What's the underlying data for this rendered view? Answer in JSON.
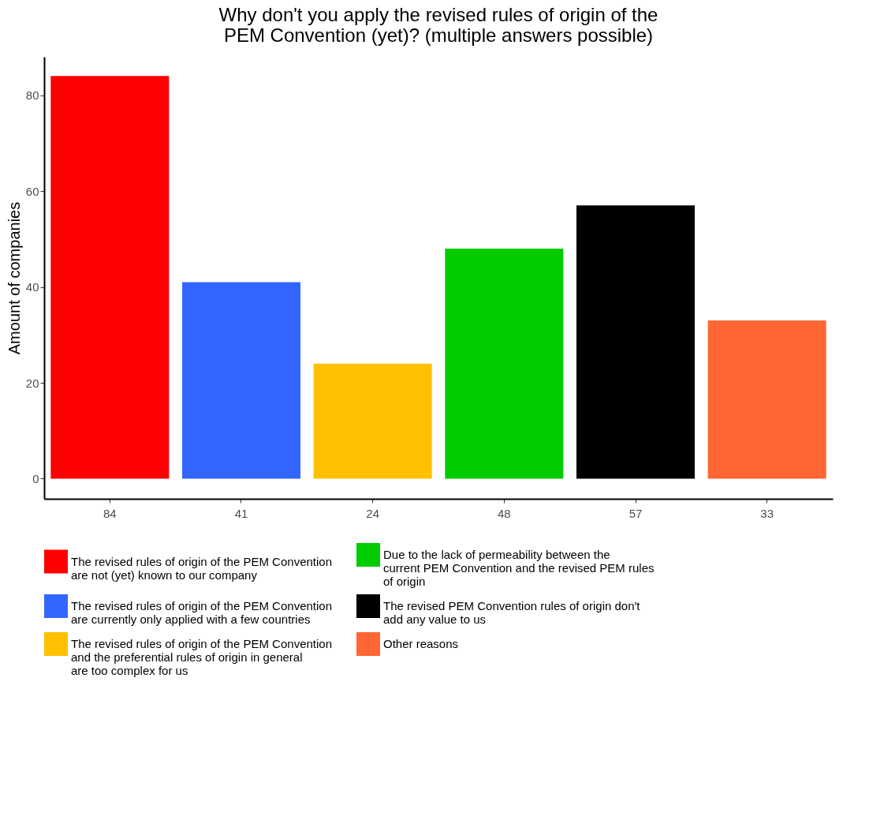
{
  "chart_data": {
    "type": "bar",
    "title": "Why don't you apply the revised rules of origin of the PEM Convention (yet)? (multiple answers possible)",
    "ylabel": "Amount of companies",
    "categories": [
      "84",
      "41",
      "24",
      "48",
      "57",
      "33"
    ],
    "series": [
      {
        "name": "The revised rules of origin of the PEM Convention are not (yet) known to our company",
        "color": "#ff0000",
        "values": [
          84,
          null,
          null,
          null,
          null,
          null
        ]
      },
      {
        "name": "The revised rules of origin of the PEM Convention are currently only applied with a few countries",
        "color": "#3366ff",
        "values": [
          null,
          41,
          null,
          null,
          null,
          null
        ]
      },
      {
        "name": "The revised rules of origin of the PEM Convention and the preferential rules of origin in general are too complex for us",
        "color": "#ffc000",
        "values": [
          null,
          null,
          24,
          null,
          null,
          null
        ]
      },
      {
        "name": "Due to the lack of permeability between the current PEM Convention and the revised PEM rules of origin",
        "color": "#00cc00",
        "values": [
          null,
          null,
          null,
          48,
          null,
          null
        ]
      },
      {
        "name": "The revised PEM Convention rules of origin don't add any value to us",
        "color": "#000000",
        "values": [
          null,
          null,
          null,
          null,
          57,
          null
        ]
      },
      {
        "name": "Other reasons",
        "color": "#ff6633",
        "values": [
          null,
          null,
          null,
          null,
          null,
          33
        ]
      }
    ],
    "ylim": [
      -4.2,
      88
    ],
    "yticks": [
      0,
      20,
      40,
      60,
      80
    ],
    "grid": false,
    "legend": "bottom"
  }
}
